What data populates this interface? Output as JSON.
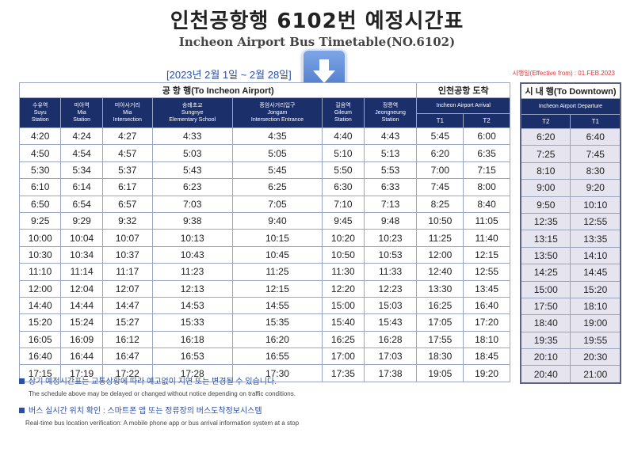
{
  "header": {
    "title": "인천공항행 6102번 예정시간표",
    "subtitle": "Incheon Airport Bus Timetable(NO.6102)",
    "date_range": "[2023년 2월 1일 ~ 2월 28일]",
    "effective": "시행일(Effective from) : 01.FEB.2023"
  },
  "icons": {
    "download": "down-arrow-icon"
  },
  "colors": {
    "header_bg": "#1b2f6b",
    "accent": "#2b4fa3",
    "downtown_bg": "#e6e4ee"
  },
  "airport": {
    "group_label": "공 항 행(To Incheon Airport)",
    "stops": [
      {
        "ko": "수유역",
        "en1": "Suyu",
        "en2": "Station"
      },
      {
        "ko": "미아역",
        "en1": "Mia",
        "en2": "Station"
      },
      {
        "ko": "미아사거리",
        "en1": "Mia",
        "en2": "Intersection"
      },
      {
        "ko": "숭례초교",
        "en1": "Sungnye",
        "en2": "Elementary School"
      },
      {
        "ko": "종암사거리입구",
        "en1": "Jongam",
        "en2": "Intersection Entrance"
      },
      {
        "ko": "길음역",
        "en1": "Gileum",
        "en2": "Station"
      },
      {
        "ko": "정릉역",
        "en1": "Jeongneung",
        "en2": "Station"
      }
    ]
  },
  "arrival": {
    "group_label": "인천공항 도착",
    "sub_label": "Incheon Airport Arrival",
    "cols": [
      "T1",
      "T2"
    ]
  },
  "downtown": {
    "group_label": "시 내 행(To Downtown)",
    "sub_label": "Incheon Airport Departure",
    "cols": [
      "T2",
      "T1"
    ]
  },
  "rows": [
    [
      "4:20",
      "4:24",
      "4:27",
      "4:33",
      "4:35",
      "4:40",
      "4:43",
      "5:45",
      "6:00",
      "6:20",
      "6:40"
    ],
    [
      "4:50",
      "4:54",
      "4:57",
      "5:03",
      "5:05",
      "5:10",
      "5:13",
      "6:20",
      "6:35",
      "7:25",
      "7:45"
    ],
    [
      "5:30",
      "5:34",
      "5:37",
      "5:43",
      "5:45",
      "5:50",
      "5:53",
      "7:00",
      "7:15",
      "8:10",
      "8:30"
    ],
    [
      "6:10",
      "6:14",
      "6:17",
      "6:23",
      "6:25",
      "6:30",
      "6:33",
      "7:45",
      "8:00",
      "9:00",
      "9:20"
    ],
    [
      "6:50",
      "6:54",
      "6:57",
      "7:03",
      "7:05",
      "7:10",
      "7:13",
      "8:25",
      "8:40",
      "9:50",
      "10:10"
    ],
    [
      "9:25",
      "9:29",
      "9:32",
      "9:38",
      "9:40",
      "9:45",
      "9:48",
      "10:50",
      "11:05",
      "12:35",
      "12:55"
    ],
    [
      "10:00",
      "10:04",
      "10:07",
      "10:13",
      "10:15",
      "10:20",
      "10:23",
      "11:25",
      "11:40",
      "13:15",
      "13:35"
    ],
    [
      "10:30",
      "10:34",
      "10:37",
      "10:43",
      "10:45",
      "10:50",
      "10:53",
      "12:00",
      "12:15",
      "13:50",
      "14:10"
    ],
    [
      "11:10",
      "11:14",
      "11:17",
      "11:23",
      "11:25",
      "11:30",
      "11:33",
      "12:40",
      "12:55",
      "14:25",
      "14:45"
    ],
    [
      "12:00",
      "12:04",
      "12:07",
      "12:13",
      "12:15",
      "12:20",
      "12:23",
      "13:30",
      "13:45",
      "15:00",
      "15:20"
    ],
    [
      "14:40",
      "14:44",
      "14:47",
      "14:53",
      "14:55",
      "15:00",
      "15:03",
      "16:25",
      "16:40",
      "17:50",
      "18:10"
    ],
    [
      "15:20",
      "15:24",
      "15:27",
      "15:33",
      "15:35",
      "15:40",
      "15:43",
      "17:05",
      "17:20",
      "18:40",
      "19:00"
    ],
    [
      "16:05",
      "16:09",
      "16:12",
      "16:18",
      "16:20",
      "16:25",
      "16:28",
      "17:55",
      "18:10",
      "19:35",
      "19:55"
    ],
    [
      "16:40",
      "16:44",
      "16:47",
      "16:53",
      "16:55",
      "17:00",
      "17:03",
      "18:30",
      "18:45",
      "20:10",
      "20:30"
    ],
    [
      "17:15",
      "17:19",
      "17:22",
      "17:28",
      "17:30",
      "17:35",
      "17:38",
      "19:05",
      "19:20",
      "20:40",
      "21:00"
    ]
  ],
  "notes": [
    {
      "ko": "상기 예정시간표는 교통상황에 따라 예고없이 지연 또는 변경될 수 있습니다.",
      "en": "The schedule above may be delayed or changed without notice depending on traffic conditions."
    },
    {
      "ko": "버스 실시간 위치 확인 : 스마트폰 앱 또는 정류장의 버스도착정보시스템",
      "en": "Real-time bus location verification: A mobile phone app or bus arrival information system at a stop"
    }
  ]
}
